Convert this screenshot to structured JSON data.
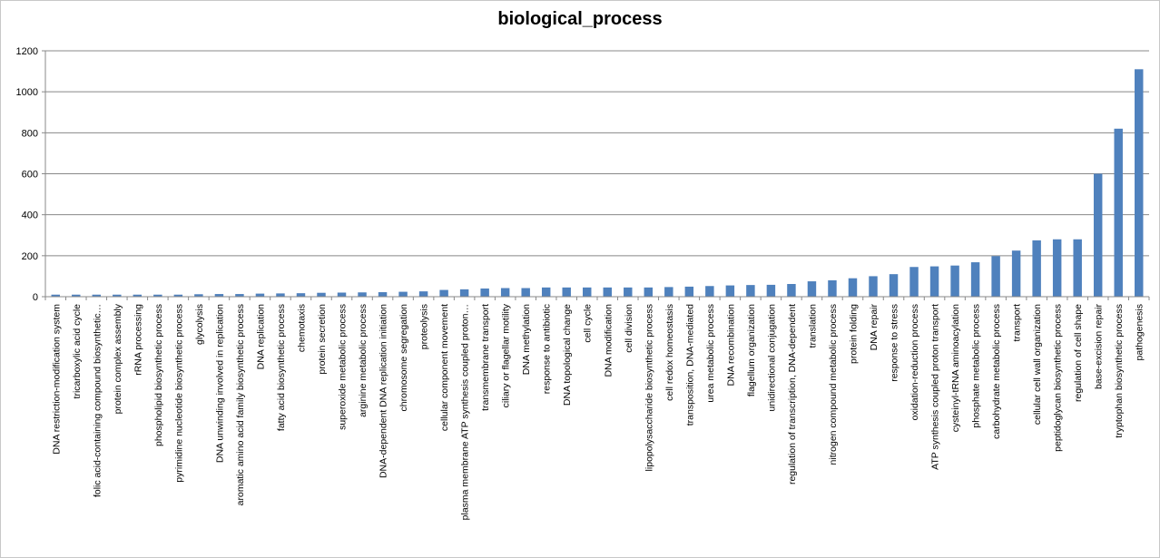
{
  "chart_data": {
    "type": "bar",
    "title": "biological_process",
    "xlabel": "",
    "ylabel": "",
    "ylim": [
      0,
      1200
    ],
    "yticks": [
      0,
      200,
      400,
      600,
      800,
      1000,
      1200
    ],
    "grid": true,
    "legend": "none",
    "bar_color": "#4f81bd",
    "categories": [
      "DNA restriction-modification system",
      "tricarboxylic acid cycle",
      "folic acid-containing compound biosynthetic…",
      "protein complex assembly",
      "rRNA processing",
      "phospholipid biosynthetic process",
      "pyrimidine nucleotide biosynthetic process",
      "glycolysis",
      "DNA unwinding involved in replication",
      "aromatic amino acid family biosynthetic process",
      "DNA replication",
      "fatty acid biosynthetic process",
      "chemotaxis",
      "protein secretion",
      "superoxide metabolic process",
      "arginine metabolic process",
      "DNA-dependent DNA replication initiation",
      "chromosome segregation",
      "proteolysis",
      "cellular component movement",
      "plasma membrane ATP synthesis coupled proton…",
      "transmembrane transport",
      "ciliary or flagellar motility",
      "DNA methylation",
      "response to antibiotic",
      "DNA topological change",
      "cell cycle",
      "DNA modification",
      "cell division",
      "lipopolysaccharide biosynthetic process",
      "cell redox homeostasis",
      "transposition, DNA-mediated",
      "urea metabolic process",
      "DNA recombination",
      "flagellum organization",
      "unidirectional conjugation",
      "regulation of transcription, DNA-dependent",
      "translation",
      "nitrogen compound metabolic process",
      "protein folding",
      "DNA repair",
      "response to stress",
      "oxidation-reduction process",
      "ATP synthesis coupled proton transport",
      "cysteinyl-tRNA aminoacylation",
      "phosphate metabolic process",
      "carbohydrate metabolic process",
      "transport",
      "cellular cell wall organization",
      "peptidoglycan biosynthetic process",
      "regulation of cell shape",
      "base-excision repair",
      "tryptophan biosynthetic process",
      "pathogenesis"
    ],
    "values": [
      10,
      10,
      10,
      10,
      10,
      10,
      10,
      12,
      13,
      13,
      15,
      16,
      17,
      19,
      20,
      21,
      22,
      24,
      26,
      33,
      36,
      40,
      42,
      42,
      45,
      45,
      45,
      45,
      45,
      45,
      47,
      49,
      52,
      55,
      57,
      58,
      62,
      75,
      80,
      90,
      100,
      110,
      145,
      148,
      152,
      168,
      198,
      225,
      275,
      280,
      280,
      600,
      820,
      1110
    ]
  }
}
